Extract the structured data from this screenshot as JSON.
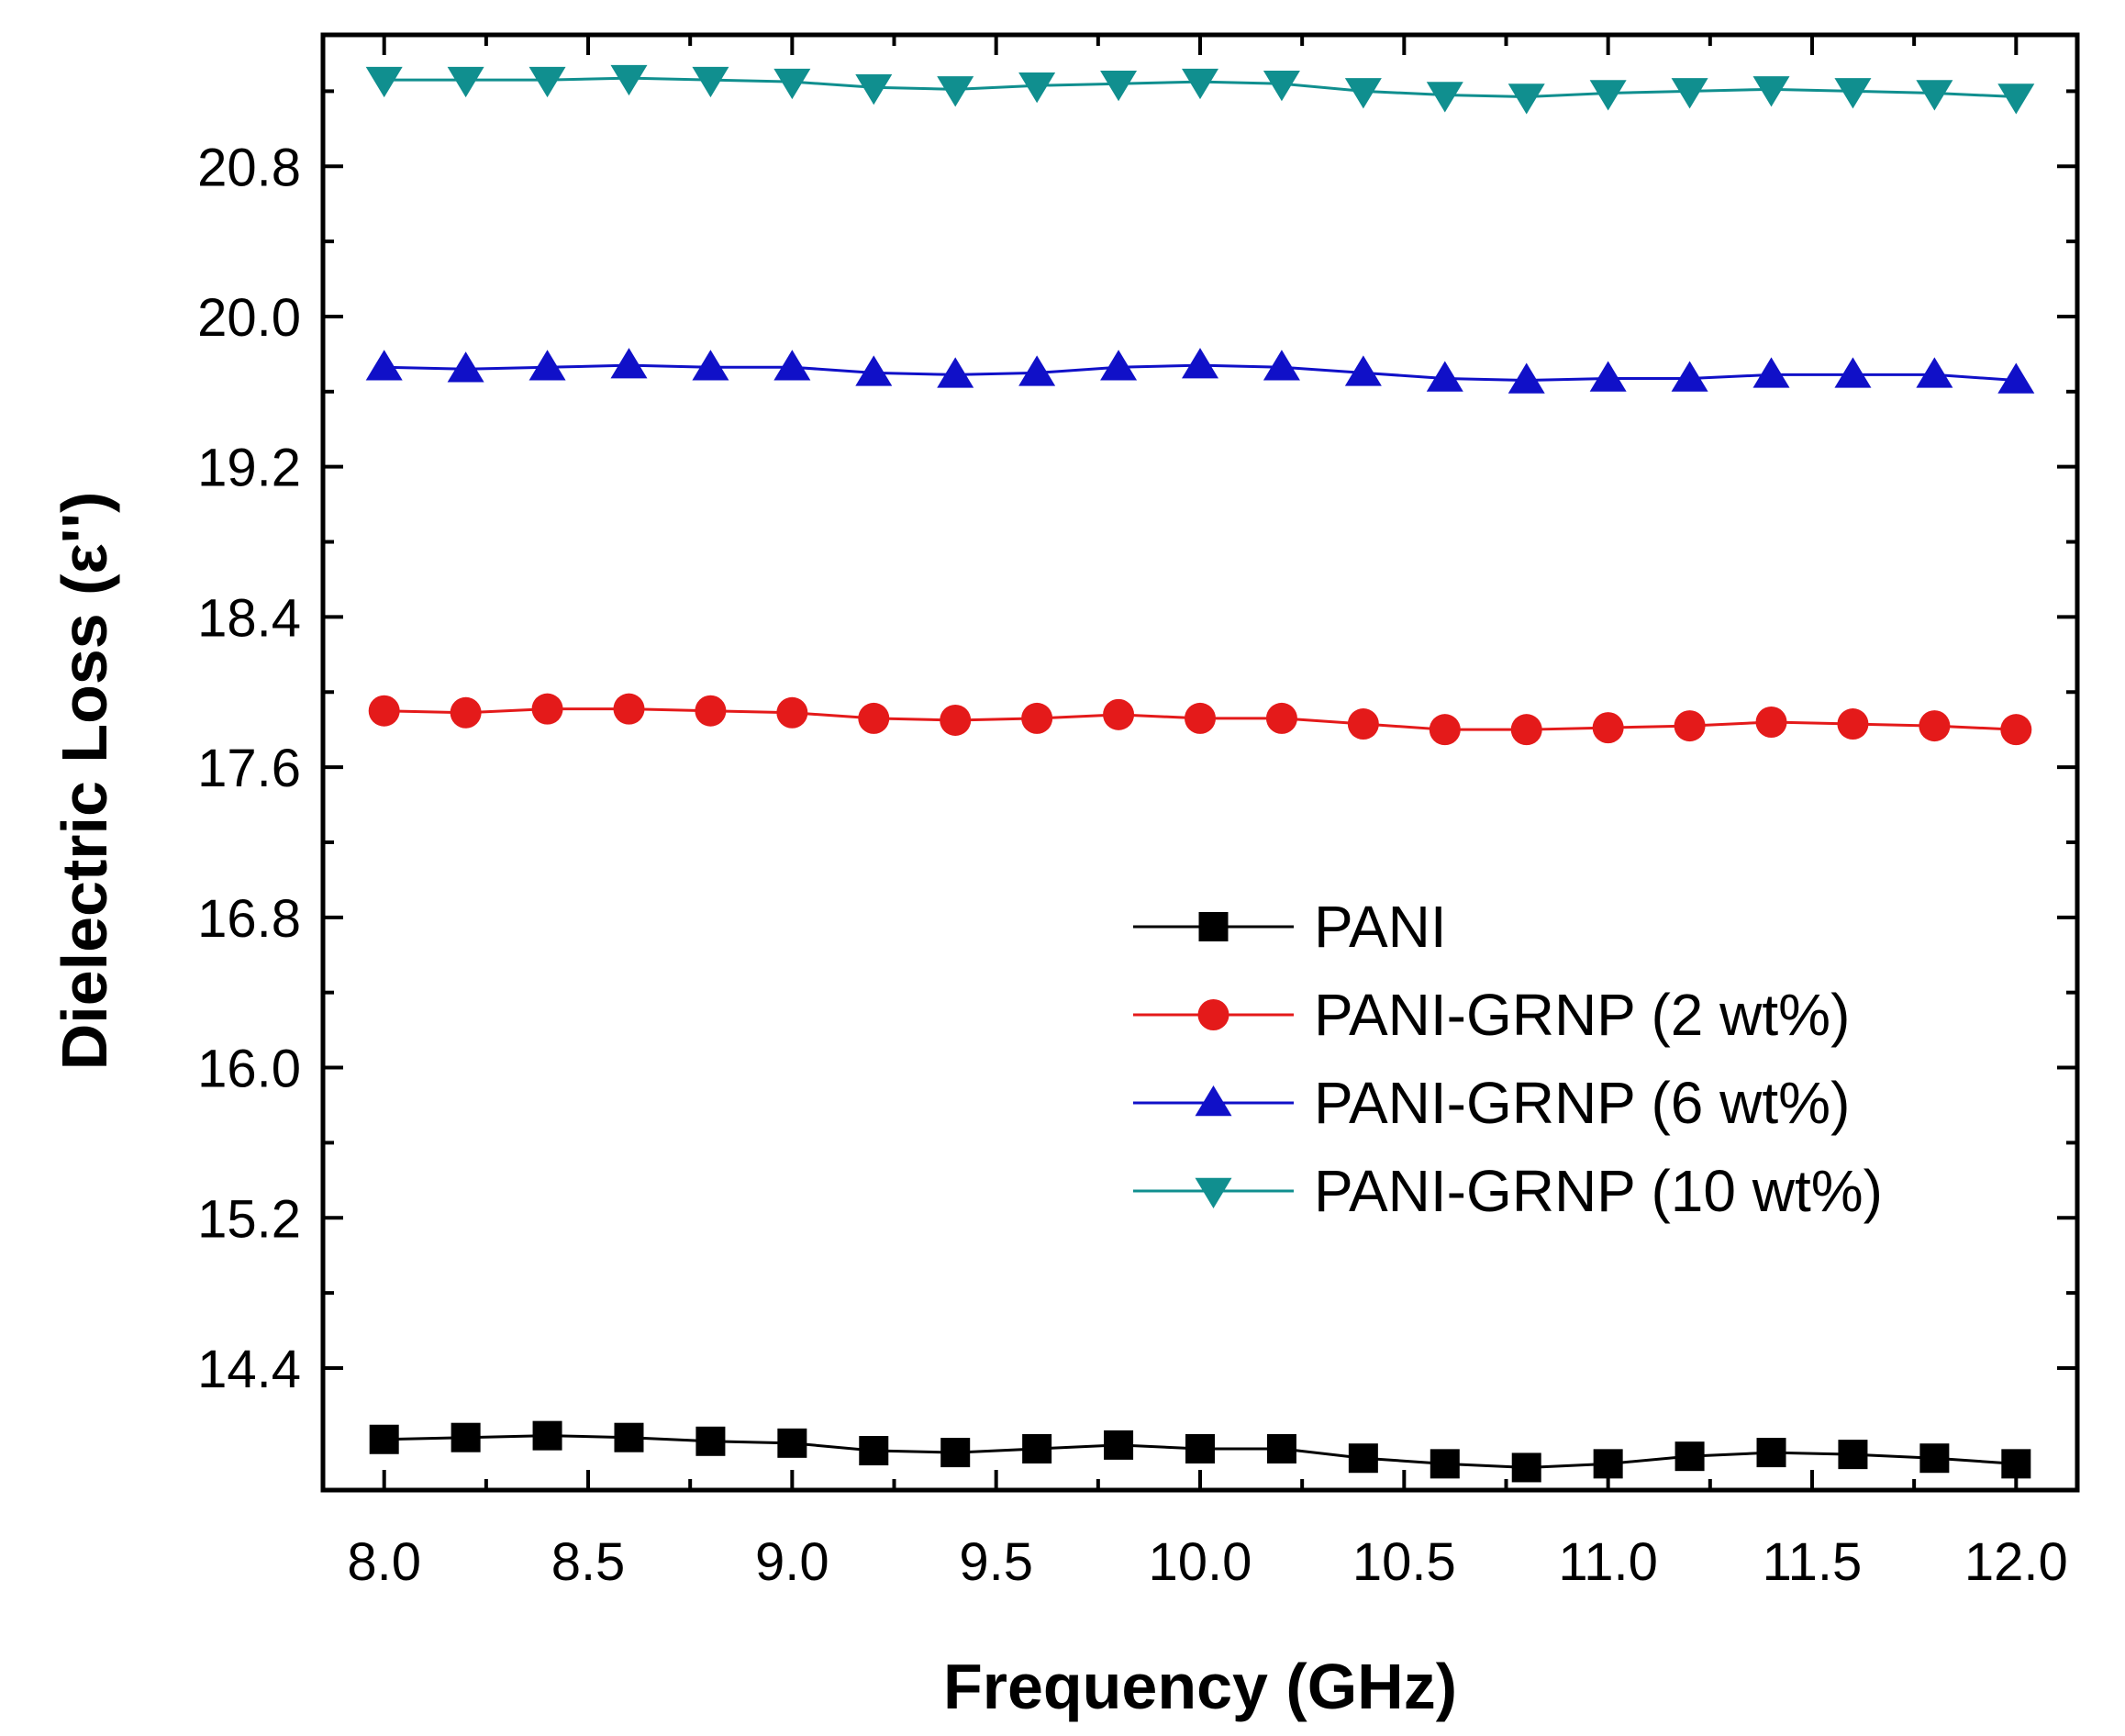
{
  "chart_data": {
    "type": "line",
    "title": "",
    "xlabel": "Frequency (GHz)",
    "ylabel": "Dielectric Loss (ε'')",
    "xlim": [
      7.85,
      12.15
    ],
    "ylim": [
      13.75,
      21.5
    ],
    "xticks": [
      8.0,
      8.5,
      9.0,
      9.5,
      10.0,
      10.5,
      11.0,
      11.5,
      12.0
    ],
    "xtick_labels": [
      "8.0",
      "8.5",
      "9.0",
      "9.5",
      "10.0",
      "10.5",
      "11.0",
      "11.5",
      "12.0"
    ],
    "yticks": [
      14.4,
      15.2,
      16.0,
      16.8,
      17.6,
      18.4,
      19.2,
      20.0,
      20.8
    ],
    "ytick_labels": [
      "14.4",
      "15.2",
      "16.0",
      "16.8",
      "17.6",
      "18.4",
      "19.2",
      "20.0",
      "20.8"
    ],
    "grid": false,
    "legend_position": "center-right",
    "x": [
      8.0,
      8.2,
      8.4,
      8.6,
      8.8,
      9.0,
      9.2,
      9.4,
      9.6,
      9.8,
      10.0,
      10.2,
      10.4,
      10.6,
      10.8,
      11.0,
      11.2,
      11.4,
      11.6,
      11.8,
      12.0
    ],
    "series": [
      {
        "name": "PANI",
        "color": "#000000",
        "marker": "square",
        "values": [
          14.02,
          14.03,
          14.04,
          14.03,
          14.01,
          14.0,
          13.96,
          13.95,
          13.97,
          13.99,
          13.97,
          13.97,
          13.92,
          13.89,
          13.87,
          13.89,
          13.93,
          13.95,
          13.94,
          13.92,
          13.89
        ]
      },
      {
        "name": "PANI-GRNP (2 wt%)",
        "color": "#e41a1a",
        "marker": "circle",
        "values": [
          17.9,
          17.89,
          17.91,
          17.91,
          17.9,
          17.89,
          17.86,
          17.85,
          17.86,
          17.88,
          17.86,
          17.86,
          17.83,
          17.8,
          17.8,
          17.81,
          17.82,
          17.84,
          17.83,
          17.82,
          17.8
        ]
      },
      {
        "name": "PANI-GRNP (6 wt%)",
        "color": "#1010c8",
        "marker": "triangle-up",
        "values": [
          19.73,
          19.72,
          19.73,
          19.74,
          19.73,
          19.73,
          19.7,
          19.69,
          19.7,
          19.73,
          19.74,
          19.73,
          19.7,
          19.67,
          19.66,
          19.67,
          19.67,
          19.69,
          19.69,
          19.69,
          19.66
        ]
      },
      {
        "name": "PANI-GRNP (10 wt%)",
        "color": "#108f8f",
        "marker": "triangle-down",
        "values": [
          21.26,
          21.26,
          21.26,
          21.27,
          21.26,
          21.25,
          21.22,
          21.21,
          21.23,
          21.24,
          21.25,
          21.24,
          21.2,
          21.18,
          21.17,
          21.19,
          21.2,
          21.21,
          21.2,
          21.19,
          21.17
        ]
      }
    ]
  }
}
